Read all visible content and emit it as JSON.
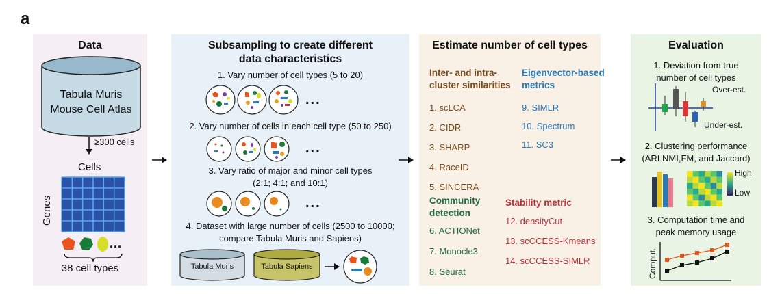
{
  "figure_label": "a",
  "data_panel": {
    "title": "Data",
    "db_line1": "Tabula Muris",
    "db_line2": "Mouse Cell Atlas",
    "filter": "≥300 cells",
    "cells_label": "Cells",
    "genes_label": "Genes",
    "ellipsis": "...",
    "cell_types": "38 cell types"
  },
  "subsampling_panel": {
    "title_line1": "Subsampling to create different",
    "title_line2": "data characteristics",
    "item1": "1. Vary number of cell types (5 to 20)",
    "item2": "2. Vary number of cells in each cell type (50 to 250)",
    "item3_line1": "3. Vary ratio of major and minor cell types",
    "item3_line2": "(2:1; 4:1; and 10:1)",
    "item4_line1": "4. Dataset with large number of cells (2500 to 10000;",
    "item4_line2": "compare Tabula Muris and Sapiens)",
    "ellipsis": "...",
    "db_muris": "Tabula Muris",
    "db_sapiens": "Tabula Sapiens"
  },
  "estimate_panel": {
    "title": "Estimate number of cell types",
    "group1_line1": "Inter- and intra-",
    "group1_line2": "cluster similarities",
    "group1_methods": [
      "1. scLCA",
      "2. CIDR",
      "3. SHARP",
      "4. RaceID",
      "5. SINCERA"
    ],
    "group2_line1": "Eigenvector-based",
    "group2_line2": "metrics",
    "group2_methods": [
      "9. SIMLR",
      "10. Spectrum",
      "11. SC3"
    ],
    "group3_line1": "Community",
    "group3_line2": "detection",
    "group3_methods": [
      "6. ACTIONet",
      "7. Monocle3",
      "8. Seurat"
    ],
    "group4_title": "Stability metric",
    "group4_methods": [
      "12. densityCut",
      "13. scCCESS-Kmeans",
      "14. scCCESS-SIMLR"
    ]
  },
  "evaluation_panel": {
    "title": "Evaluation",
    "item1_line1": "1. Deviation from true",
    "item1_line2": "number of cell types",
    "over": "Over-est.",
    "under": "Under-est.",
    "item2_line1": "2. Clustering performance",
    "item2_line2": "(ARI,NMI,FM, and Jaccard)",
    "high": "High",
    "low": "Low",
    "item3_line1": "3. Computation time and",
    "item3_line2": "peak memory usage",
    "comput": "Comput."
  },
  "colors": {
    "data_bg": "#f5eef5",
    "sub_bg": "#e8f0f8",
    "est_bg": "#f9f1e6",
    "eval_bg": "#e9f4e4",
    "brown": "#7a4a1e",
    "blue": "#2a7ab8",
    "green": "#1f6b3a",
    "red": "#b8323a"
  }
}
